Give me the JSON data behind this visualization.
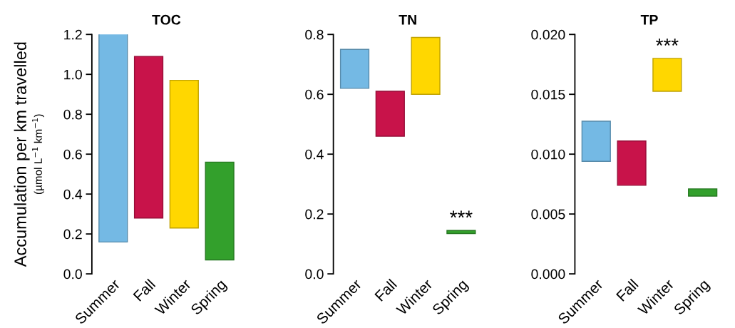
{
  "chart_data": [
    {
      "type": "bar",
      "title": "TOC",
      "ylabel": "Accumulation per km travelled\n(µmol L$^{−1}$ km$^{−1}$)",
      "categories": [
        "Summer",
        "Fall",
        "Winter",
        "Spring"
      ],
      "base": [
        0.16,
        0.28,
        0.23,
        0.07
      ],
      "values": [
        1.06,
        0.81,
        0.74,
        0.49
      ],
      "colors": [
        "#74b9e4",
        "#c8134a",
        "#ffd700",
        "#33a02c"
      ],
      "ylim": [
        0,
        1.2
      ],
      "yticks": [
        {
          "value": 0,
          "label": "0.0"
        },
        0.2,
        0.4,
        0.6,
        0.8,
        {
          "value": 1,
          "label": "1.0"
        },
        1.2
      ],
      "grid": false,
      "legend": false
    },
    {
      "type": "bar",
      "title": "TN",
      "categories": [
        "Summer",
        "Fall",
        "Winter",
        "Spring"
      ],
      "base": [
        0.62,
        0.46,
        0.6,
        0.135
      ],
      "values": [
        0.13,
        0.15,
        0.19,
        0.01
      ],
      "colors": [
        "#74b9e4",
        "#c8134a",
        "#ffd700",
        "#33a02c"
      ],
      "ylim": [
        0,
        0.8
      ],
      "yticks": [
        {
          "value": 0,
          "label": "0.0"
        },
        0.2,
        0.4,
        0.6,
        0.8
      ],
      "grid": false,
      "legend": false,
      "annotations": [
        {
          "text": "***",
          "x": "Spring",
          "y": 0.145
        }
      ]
    },
    {
      "type": "bar",
      "title": "TP",
      "categories": [
        "Summer",
        "Fall",
        "Winter",
        "Spring"
      ],
      "base": [
        0.0094,
        0.0074,
        0.01525,
        0.0065
      ],
      "values": [
        0.00335,
        0.0037,
        0.00275,
        0.0006
      ],
      "colors": [
        "#74b9e4",
        "#c8134a",
        "#ffd700",
        "#33a02c"
      ],
      "ylim": [
        0,
        0.02
      ],
      "yticks": [
        {
          "value": 0,
          "label": "0.000"
        },
        0.005,
        {
          "value": 0.01,
          "label": "0.010"
        },
        0.015,
        {
          "value": 0.02,
          "label": "0.020"
        }
      ],
      "grid": false,
      "legend": false,
      "annotations": [
        {
          "text": "***",
          "x": "Winter",
          "y": 0.018
        }
      ]
    }
  ]
}
